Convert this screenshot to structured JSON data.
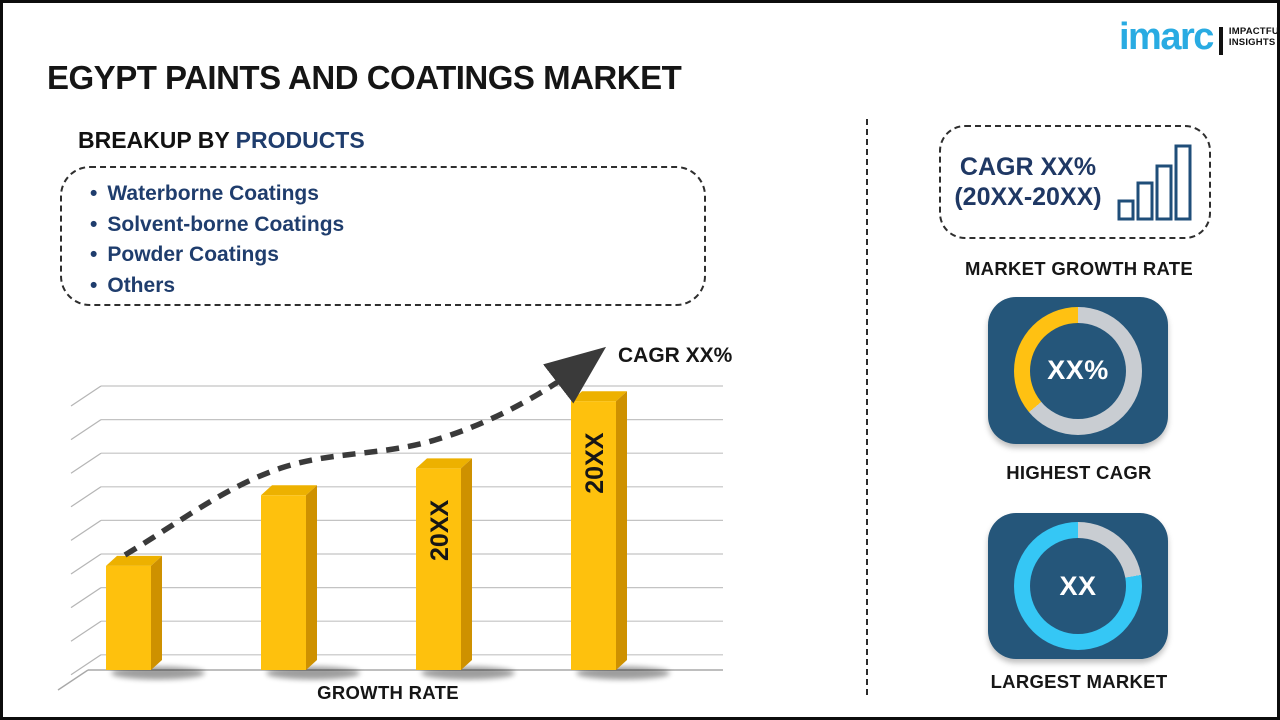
{
  "page": {
    "title": "EGYPT PAINTS AND COATINGS MARKET"
  },
  "logo": {
    "brand": "imarc",
    "tagline_line1": "IMPACTFUL",
    "tagline_line2": "INSIGHTS",
    "brand_color": "#29ABE2"
  },
  "breakup": {
    "heading_prefix": "BREAKUP BY ",
    "heading_highlight": "PRODUCTS",
    "items": [
      "Waterborne Coatings",
      "Solvent-borne Coatings",
      "Powder Coatings",
      "Others"
    ],
    "text_color": "#1F3D6D"
  },
  "chart_data": {
    "type": "bar",
    "title": "",
    "xlabel": "GROWTH RATE",
    "ylabel": "",
    "categories": [
      "",
      "",
      "20XX",
      "20XX"
    ],
    "values": [
      3.1,
      5.2,
      6.0,
      8.0
    ],
    "value_note": "no numeric axis shown; values estimated in gridline units",
    "ylim": [
      0,
      9
    ],
    "grid": true,
    "bar_color": "#FEC10D",
    "bar_side_color": "#CE9100",
    "bar_top_color": "#EDB100",
    "trend_label": "CAGR XX%",
    "trend_style": "black dashed rising arrow"
  },
  "sidebar": {
    "cagr_box": {
      "line1": "CAGR XX%",
      "line2": "(20XX-20XX)",
      "caption": "MARKET GROWTH RATE",
      "icon": "bar-chart-icon",
      "text_color": "#1F3864"
    },
    "highest_cagr": {
      "value": "XX%",
      "caption": "HIGHEST CAGR",
      "card_color": "#25567A",
      "segment_color": "#FFC112",
      "ring_color": "#C9CDD2",
      "segment_degrees": 130
    },
    "largest_market": {
      "value": "XX",
      "caption": "LARGEST MARKET",
      "card_color": "#25567A",
      "segment_color": "#35C7F5",
      "ring_color": "#C9CDD2",
      "segment_degrees": 280
    }
  }
}
